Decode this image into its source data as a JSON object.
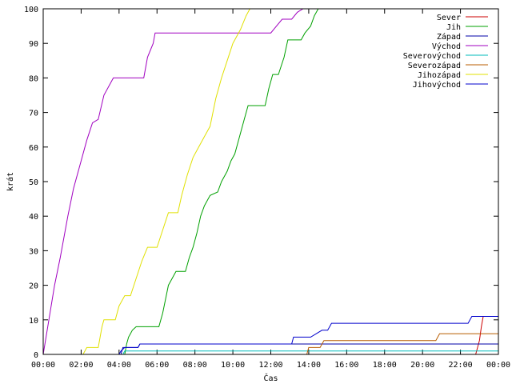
{
  "chart_data": {
    "type": "line",
    "xlabel": "Čas",
    "ylabel": "krát",
    "xlim": [
      0,
      24
    ],
    "ylim": [
      0,
      100
    ],
    "x_ticks": [
      {
        "v": 0,
        "label": "00:00"
      },
      {
        "v": 2,
        "label": "02:00"
      },
      {
        "v": 4,
        "label": "04:00"
      },
      {
        "v": 6,
        "label": "06:00"
      },
      {
        "v": 8,
        "label": "08:00"
      },
      {
        "v": 10,
        "label": "10:00"
      },
      {
        "v": 12,
        "label": "12:00"
      },
      {
        "v": 14,
        "label": "14:00"
      },
      {
        "v": 16,
        "label": "16:00"
      },
      {
        "v": 18,
        "label": "18:00"
      },
      {
        "v": 20,
        "label": "20:00"
      },
      {
        "v": 22,
        "label": "22:00"
      },
      {
        "v": 24,
        "label": "00:00"
      }
    ],
    "y_ticks": [
      {
        "v": 0,
        "label": "0"
      },
      {
        "v": 10,
        "label": "10"
      },
      {
        "v": 20,
        "label": "20"
      },
      {
        "v": 30,
        "label": "30"
      },
      {
        "v": 40,
        "label": "40"
      },
      {
        "v": 50,
        "label": "50"
      },
      {
        "v": 60,
        "label": "60"
      },
      {
        "v": 70,
        "label": "70"
      },
      {
        "v": 80,
        "label": "80"
      },
      {
        "v": 90,
        "label": "90"
      },
      {
        "v": 100,
        "label": "100"
      }
    ],
    "grid": false,
    "legend_position": "top-right",
    "series": [
      {
        "name": "Sever",
        "color": "#cc0000",
        "points": [
          [
            22.8,
            0
          ],
          [
            23.0,
            4
          ],
          [
            23.1,
            8
          ],
          [
            23.2,
            11
          ],
          [
            24.0,
            11
          ]
        ]
      },
      {
        "name": "Jih",
        "color": "#00a000",
        "points": [
          [
            4.3,
            0
          ],
          [
            4.4,
            3
          ],
          [
            4.5,
            5
          ],
          [
            4.6,
            6
          ],
          [
            4.7,
            7
          ],
          [
            4.9,
            8
          ],
          [
            6.1,
            8
          ],
          [
            6.3,
            12
          ],
          [
            6.6,
            20
          ],
          [
            6.8,
            22
          ],
          [
            7.0,
            24
          ],
          [
            7.5,
            24
          ],
          [
            7.7,
            28
          ],
          [
            7.9,
            31
          ],
          [
            8.1,
            35
          ],
          [
            8.3,
            40
          ],
          [
            8.5,
            43
          ],
          [
            8.8,
            46
          ],
          [
            9.2,
            47
          ],
          [
            9.4,
            50
          ],
          [
            9.7,
            53
          ],
          [
            9.9,
            56
          ],
          [
            10.1,
            58
          ],
          [
            10.3,
            62
          ],
          [
            10.6,
            68
          ],
          [
            10.8,
            72
          ],
          [
            11.7,
            72
          ],
          [
            11.9,
            77
          ],
          [
            12.1,
            81
          ],
          [
            12.4,
            81
          ],
          [
            12.7,
            86
          ],
          [
            12.9,
            91
          ],
          [
            13.6,
            91
          ],
          [
            13.8,
            93
          ],
          [
            14.1,
            95
          ],
          [
            14.3,
            98
          ],
          [
            14.5,
            100
          ]
        ]
      },
      {
        "name": "Západ",
        "color": "#0000aa",
        "points": [
          [
            4.1,
            0
          ],
          [
            4.2,
            2
          ],
          [
            5.0,
            2
          ],
          [
            5.1,
            3
          ],
          [
            24.0,
            3
          ]
        ]
      },
      {
        "name": "Východ",
        "color": "#a000c0",
        "points": [
          [
            0.0,
            0
          ],
          [
            0.3,
            10
          ],
          [
            0.6,
            20
          ],
          [
            0.9,
            28
          ],
          [
            1.3,
            40
          ],
          [
            1.6,
            48
          ],
          [
            2.0,
            56
          ],
          [
            2.3,
            62
          ],
          [
            2.6,
            67
          ],
          [
            2.9,
            68
          ],
          [
            3.2,
            75
          ],
          [
            3.7,
            80
          ],
          [
            5.3,
            80
          ],
          [
            5.5,
            86
          ],
          [
            5.8,
            90
          ],
          [
            5.9,
            93
          ],
          [
            12.0,
            93
          ],
          [
            12.3,
            95
          ],
          [
            12.6,
            97
          ],
          [
            13.1,
            97
          ],
          [
            13.4,
            99
          ],
          [
            13.7,
            100
          ]
        ]
      },
      {
        "name": "Severovýchod",
        "color": "#00bbbb",
        "points": [
          [
            4.2,
            0
          ],
          [
            4.3,
            1
          ],
          [
            24.0,
            1
          ]
        ]
      },
      {
        "name": "Severozápad",
        "color": "#b85c00",
        "points": [
          [
            13.9,
            0
          ],
          [
            14.0,
            2
          ],
          [
            14.6,
            2
          ],
          [
            14.8,
            4
          ],
          [
            20.7,
            4
          ],
          [
            20.9,
            6
          ],
          [
            24.0,
            6
          ]
        ]
      },
      {
        "name": "Jihozápad",
        "color": "#e0e000",
        "points": [
          [
            2.1,
            0
          ],
          [
            2.3,
            2
          ],
          [
            2.9,
            2
          ],
          [
            3.1,
            8
          ],
          [
            3.2,
            10
          ],
          [
            3.8,
            10
          ],
          [
            4.0,
            14
          ],
          [
            4.3,
            17
          ],
          [
            4.6,
            17
          ],
          [
            4.9,
            22
          ],
          [
            5.2,
            27
          ],
          [
            5.5,
            31
          ],
          [
            6.0,
            31
          ],
          [
            6.3,
            36
          ],
          [
            6.6,
            41
          ],
          [
            7.1,
            41
          ],
          [
            7.3,
            46
          ],
          [
            7.6,
            52
          ],
          [
            7.9,
            57
          ],
          [
            8.2,
            60
          ],
          [
            8.5,
            63
          ],
          [
            8.8,
            66
          ],
          [
            9.1,
            74
          ],
          [
            9.4,
            80
          ],
          [
            9.7,
            85
          ],
          [
            10.0,
            90
          ],
          [
            10.4,
            94
          ],
          [
            10.7,
            98
          ],
          [
            10.9,
            100
          ]
        ]
      },
      {
        "name": "Jihovýchod",
        "color": "#0000cc",
        "points": [
          [
            4.0,
            0
          ],
          [
            4.1,
            1
          ],
          [
            4.3,
            2
          ],
          [
            5.0,
            2
          ],
          [
            5.1,
            3
          ],
          [
            13.1,
            3
          ],
          [
            13.2,
            5
          ],
          [
            14.1,
            5
          ],
          [
            14.4,
            6
          ],
          [
            14.7,
            7
          ],
          [
            15.0,
            7
          ],
          [
            15.2,
            9
          ],
          [
            22.4,
            9
          ],
          [
            22.6,
            11
          ],
          [
            24.0,
            11
          ]
        ]
      }
    ]
  }
}
